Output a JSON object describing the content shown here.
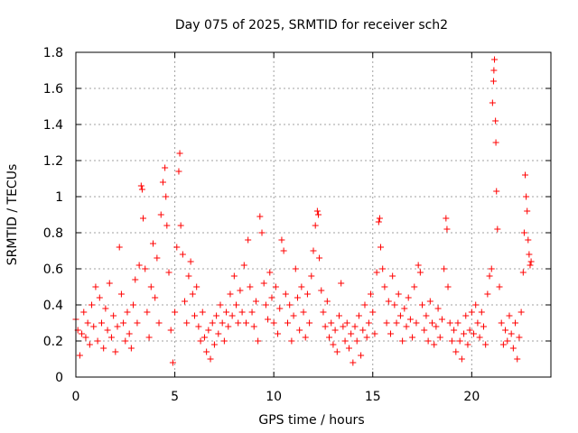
{
  "chart_data": {
    "type": "scatter",
    "title": "Day 075 of 2025, SRMTID for receiver sch2",
    "xlabel": "GPS time / hours",
    "ylabel": "SRMTID / TECUs",
    "xlim": [
      0,
      24
    ],
    "ylim": [
      0,
      1.8
    ],
    "xticks": [
      0,
      5,
      10,
      15,
      20
    ],
    "xtick_labels": [
      "0",
      "5",
      "10",
      "15",
      "20"
    ],
    "yticks": [
      0,
      0.2,
      0.4,
      0.6,
      0.8,
      1,
      1.2,
      1.4,
      1.6,
      1.8
    ],
    "ytick_labels": [
      "0",
      "0.2",
      "0.4",
      "0.6",
      "0.8",
      "1",
      "1.2",
      "1.4",
      "1.6",
      "1.8"
    ],
    "grid": true,
    "marker": "+",
    "marker_color": "#ff0000",
    "series": [
      {
        "name": "sch2",
        "points": [
          [
            0.0,
            0.32
          ],
          [
            0.1,
            0.26
          ],
          [
            0.2,
            0.12
          ],
          [
            0.3,
            0.24
          ],
          [
            0.4,
            0.36
          ],
          [
            0.5,
            0.22
          ],
          [
            0.6,
            0.3
          ],
          [
            0.7,
            0.18
          ],
          [
            0.8,
            0.4
          ],
          [
            0.9,
            0.28
          ],
          [
            1.0,
            0.5
          ],
          [
            1.1,
            0.2
          ],
          [
            1.2,
            0.44
          ],
          [
            1.3,
            0.3
          ],
          [
            1.4,
            0.16
          ],
          [
            1.5,
            0.38
          ],
          [
            1.6,
            0.26
          ],
          [
            1.7,
            0.52
          ],
          [
            1.8,
            0.22
          ],
          [
            1.9,
            0.34
          ],
          [
            2.0,
            0.14
          ],
          [
            2.1,
            0.28
          ],
          [
            2.2,
            0.72
          ],
          [
            2.3,
            0.46
          ],
          [
            2.4,
            0.3
          ],
          [
            2.5,
            0.2
          ],
          [
            2.6,
            0.36
          ],
          [
            2.7,
            0.24
          ],
          [
            2.8,
            0.16
          ],
          [
            2.9,
            0.4
          ],
          [
            3.0,
            0.54
          ],
          [
            3.1,
            0.3
          ],
          [
            3.2,
            0.62
          ],
          [
            3.3,
            1.06
          ],
          [
            3.35,
            1.04
          ],
          [
            3.4,
            0.88
          ],
          [
            3.5,
            0.6
          ],
          [
            3.6,
            0.36
          ],
          [
            3.7,
            0.22
          ],
          [
            3.8,
            0.5
          ],
          [
            3.9,
            0.74
          ],
          [
            4.0,
            0.44
          ],
          [
            4.1,
            0.66
          ],
          [
            4.2,
            0.3
          ],
          [
            4.3,
            0.9
          ],
          [
            4.4,
            1.08
          ],
          [
            4.5,
            1.16
          ],
          [
            4.55,
            1.0
          ],
          [
            4.6,
            0.84
          ],
          [
            4.7,
            0.58
          ],
          [
            4.8,
            0.26
          ],
          [
            4.9,
            0.08
          ],
          [
            5.0,
            0.36
          ],
          [
            5.1,
            0.72
          ],
          [
            5.2,
            1.14
          ],
          [
            5.25,
            1.24
          ],
          [
            5.3,
            0.84
          ],
          [
            5.4,
            0.68
          ],
          [
            5.5,
            0.42
          ],
          [
            5.6,
            0.3
          ],
          [
            5.7,
            0.56
          ],
          [
            5.8,
            0.64
          ],
          [
            5.9,
            0.46
          ],
          [
            6.0,
            0.34
          ],
          [
            6.1,
            0.5
          ],
          [
            6.2,
            0.28
          ],
          [
            6.3,
            0.2
          ],
          [
            6.4,
            0.36
          ],
          [
            6.5,
            0.22
          ],
          [
            6.6,
            0.14
          ],
          [
            6.7,
            0.26
          ],
          [
            6.8,
            0.1
          ],
          [
            6.9,
            0.3
          ],
          [
            7.0,
            0.18
          ],
          [
            7.1,
            0.34
          ],
          [
            7.2,
            0.24
          ],
          [
            7.3,
            0.4
          ],
          [
            7.4,
            0.3
          ],
          [
            7.5,
            0.2
          ],
          [
            7.6,
            0.36
          ],
          [
            7.7,
            0.28
          ],
          [
            7.8,
            0.46
          ],
          [
            7.9,
            0.34
          ],
          [
            8.0,
            0.56
          ],
          [
            8.1,
            0.4
          ],
          [
            8.2,
            0.3
          ],
          [
            8.3,
            0.48
          ],
          [
            8.4,
            0.36
          ],
          [
            8.5,
            0.62
          ],
          [
            8.6,
            0.3
          ],
          [
            8.7,
            0.76
          ],
          [
            8.8,
            0.5
          ],
          [
            8.9,
            0.36
          ],
          [
            9.0,
            0.28
          ],
          [
            9.1,
            0.42
          ],
          [
            9.2,
            0.2
          ],
          [
            9.3,
            0.89
          ],
          [
            9.4,
            0.8
          ],
          [
            9.5,
            0.52
          ],
          [
            9.6,
            0.4
          ],
          [
            9.7,
            0.32
          ],
          [
            9.8,
            0.58
          ],
          [
            9.9,
            0.44
          ],
          [
            10.0,
            0.3
          ],
          [
            10.1,
            0.5
          ],
          [
            10.2,
            0.24
          ],
          [
            10.3,
            0.38
          ],
          [
            10.4,
            0.76
          ],
          [
            10.5,
            0.7
          ],
          [
            10.6,
            0.46
          ],
          [
            10.7,
            0.3
          ],
          [
            10.8,
            0.4
          ],
          [
            10.9,
            0.2
          ],
          [
            11.0,
            0.34
          ],
          [
            11.1,
            0.6
          ],
          [
            11.2,
            0.44
          ],
          [
            11.3,
            0.26
          ],
          [
            11.4,
            0.5
          ],
          [
            11.5,
            0.36
          ],
          [
            11.6,
            0.22
          ],
          [
            11.7,
            0.46
          ],
          [
            11.8,
            0.3
          ],
          [
            11.9,
            0.56
          ],
          [
            12.0,
            0.7
          ],
          [
            12.1,
            0.84
          ],
          [
            12.2,
            0.92
          ],
          [
            12.25,
            0.9
          ],
          [
            12.3,
            0.66
          ],
          [
            12.4,
            0.48
          ],
          [
            12.5,
            0.36
          ],
          [
            12.6,
            0.28
          ],
          [
            12.7,
            0.42
          ],
          [
            12.8,
            0.22
          ],
          [
            12.9,
            0.3
          ],
          [
            13.0,
            0.18
          ],
          [
            13.1,
            0.26
          ],
          [
            13.2,
            0.14
          ],
          [
            13.3,
            0.34
          ],
          [
            13.4,
            0.52
          ],
          [
            13.5,
            0.28
          ],
          [
            13.6,
            0.2
          ],
          [
            13.7,
            0.3
          ],
          [
            13.8,
            0.16
          ],
          [
            13.9,
            0.24
          ],
          [
            14.0,
            0.08
          ],
          [
            14.1,
            0.28
          ],
          [
            14.2,
            0.2
          ],
          [
            14.3,
            0.34
          ],
          [
            14.4,
            0.12
          ],
          [
            14.5,
            0.26
          ],
          [
            14.6,
            0.4
          ],
          [
            14.7,
            0.22
          ],
          [
            14.8,
            0.3
          ],
          [
            14.9,
            0.46
          ],
          [
            15.0,
            0.36
          ],
          [
            15.1,
            0.24
          ],
          [
            15.2,
            0.58
          ],
          [
            15.3,
            0.86
          ],
          [
            15.35,
            0.88
          ],
          [
            15.4,
            0.72
          ],
          [
            15.5,
            0.6
          ],
          [
            15.6,
            0.5
          ],
          [
            15.7,
            0.3
          ],
          [
            15.8,
            0.42
          ],
          [
            15.9,
            0.24
          ],
          [
            16.0,
            0.56
          ],
          [
            16.1,
            0.4
          ],
          [
            16.2,
            0.3
          ],
          [
            16.3,
            0.46
          ],
          [
            16.4,
            0.34
          ],
          [
            16.5,
            0.2
          ],
          [
            16.6,
            0.38
          ],
          [
            16.7,
            0.28
          ],
          [
            16.8,
            0.44
          ],
          [
            16.9,
            0.32
          ],
          [
            17.0,
            0.22
          ],
          [
            17.1,
            0.5
          ],
          [
            17.2,
            0.3
          ],
          [
            17.3,
            0.62
          ],
          [
            17.4,
            0.58
          ],
          [
            17.5,
            0.4
          ],
          [
            17.6,
            0.26
          ],
          [
            17.7,
            0.34
          ],
          [
            17.8,
            0.2
          ],
          [
            17.9,
            0.42
          ],
          [
            18.0,
            0.3
          ],
          [
            18.1,
            0.18
          ],
          [
            18.2,
            0.28
          ],
          [
            18.3,
            0.38
          ],
          [
            18.4,
            0.22
          ],
          [
            18.5,
            0.32
          ],
          [
            18.6,
            0.6
          ],
          [
            18.7,
            0.88
          ],
          [
            18.75,
            0.82
          ],
          [
            18.8,
            0.5
          ],
          [
            18.9,
            0.3
          ],
          [
            19.0,
            0.2
          ],
          [
            19.1,
            0.26
          ],
          [
            19.2,
            0.14
          ],
          [
            19.3,
            0.3
          ],
          [
            19.4,
            0.2
          ],
          [
            19.5,
            0.1
          ],
          [
            19.6,
            0.24
          ],
          [
            19.7,
            0.34
          ],
          [
            19.8,
            0.18
          ],
          [
            19.9,
            0.26
          ],
          [
            20.0,
            0.36
          ],
          [
            20.1,
            0.24
          ],
          [
            20.2,
            0.4
          ],
          [
            20.3,
            0.3
          ],
          [
            20.4,
            0.22
          ],
          [
            20.5,
            0.36
          ],
          [
            20.6,
            0.28
          ],
          [
            20.7,
            0.18
          ],
          [
            20.8,
            0.46
          ],
          [
            20.9,
            0.56
          ],
          [
            21.0,
            0.6
          ],
          [
            21.05,
            1.52
          ],
          [
            21.1,
            1.64
          ],
          [
            21.12,
            1.7
          ],
          [
            21.15,
            1.76
          ],
          [
            21.2,
            1.42
          ],
          [
            21.22,
            1.3
          ],
          [
            21.25,
            1.03
          ],
          [
            21.3,
            0.82
          ],
          [
            21.4,
            0.5
          ],
          [
            21.5,
            0.3
          ],
          [
            21.6,
            0.18
          ],
          [
            21.7,
            0.26
          ],
          [
            21.8,
            0.2
          ],
          [
            21.9,
            0.34
          ],
          [
            22.0,
            0.24
          ],
          [
            22.1,
            0.16
          ],
          [
            22.2,
            0.3
          ],
          [
            22.3,
            0.1
          ],
          [
            22.4,
            0.22
          ],
          [
            22.5,
            0.36
          ],
          [
            22.6,
            0.58
          ],
          [
            22.65,
            0.8
          ],
          [
            22.7,
            1.12
          ],
          [
            22.75,
            1.0
          ],
          [
            22.8,
            0.92
          ],
          [
            22.85,
            0.76
          ],
          [
            22.9,
            0.68
          ],
          [
            22.95,
            0.62
          ],
          [
            23.0,
            0.64
          ]
        ]
      }
    ]
  }
}
